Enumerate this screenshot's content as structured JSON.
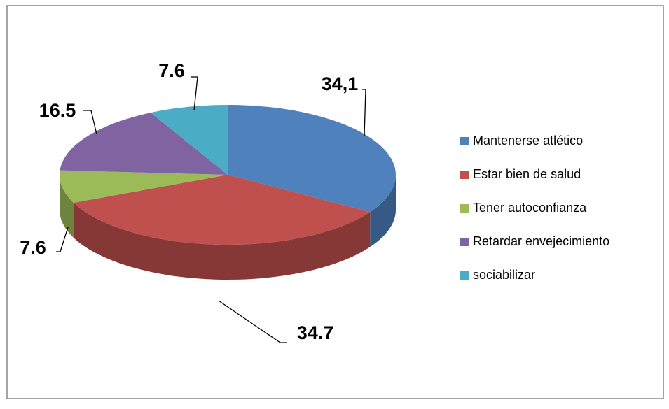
{
  "chart_data": {
    "type": "pie",
    "categories": [
      "Mantenerse atlético",
      "Estar bien de salud",
      "Tener autoconfianza",
      "Retardar envejecimiento",
      "sociabilizar"
    ],
    "values": [
      34.1,
      34.7,
      7.6,
      16.5,
      7.6
    ],
    "value_labels": [
      "34,1",
      "34.7",
      "7.6",
      "16.5",
      "7.6"
    ],
    "colors": [
      "#4f81bd",
      "#c0504d",
      "#9bbb59",
      "#8064a2",
      "#4bacc6"
    ],
    "legend": "right"
  }
}
